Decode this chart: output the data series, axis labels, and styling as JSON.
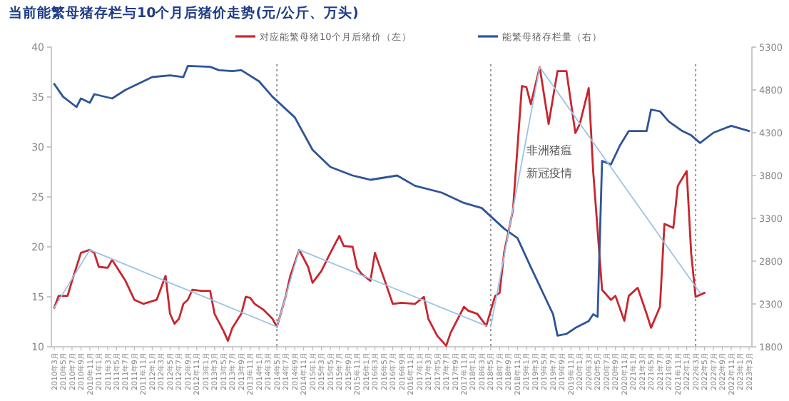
{
  "chart_data": {
    "type": "line",
    "title": "当前能繁母猪存栏与10个月后猪价走势(元/公斤、万头)",
    "series": [
      {
        "name": "对应能繁母猪10个月后猪价（左）",
        "color": "#c8262e",
        "x": [
          "2010-03",
          "2010-04",
          "2010-06",
          "2010-07",
          "2010-09",
          "2010-11",
          "2010-12",
          "2011-01",
          "2011-03",
          "2011-04",
          "2011-07",
          "2011-09",
          "2011-11",
          "2012-02",
          "2012-04",
          "2012-05",
          "2012-06",
          "2012-07",
          "2012-08",
          "2012-09",
          "2012-10",
          "2012-12",
          "2013-02",
          "2013-03",
          "2013-05",
          "2013-06",
          "2013-07",
          "2013-09",
          "2013-10",
          "2013-11",
          "2013-12",
          "2014-02",
          "2014-04",
          "2014-05",
          "2014-07",
          "2014-08",
          "2014-10",
          "2014-12",
          "2015-01",
          "2015-03",
          "2015-05",
          "2015-07",
          "2015-08",
          "2015-10",
          "2015-11",
          "2015-12",
          "2016-02",
          "2016-03",
          "2016-05",
          "2016-07",
          "2016-09",
          "2016-12",
          "2017-02",
          "2017-03",
          "2017-05",
          "2017-07",
          "2017-08",
          "2017-11",
          "2017-12",
          "2018-02",
          "2018-04",
          "2018-06",
          "2018-07",
          "2018-08",
          "2018-10",
          "2018-12",
          "2019-01",
          "2019-02",
          "2019-04",
          "2019-06",
          "2019-08",
          "2019-10",
          "2019-12",
          "2020-01",
          "2020-03",
          "2020-04",
          "2020-06",
          "2020-08",
          "2020-09",
          "2020-11",
          "2020-12",
          "2021-02",
          "2021-04",
          "2021-05",
          "2021-07",
          "2021-08",
          "2021-10",
          "2021-11",
          "2022-01",
          "2022-02",
          "2022-03",
          "2022-05"
        ],
        "values": [
          13.9,
          15.1,
          15.1,
          16.6,
          19.4,
          19.7,
          19.4,
          18,
          17.9,
          18.7,
          16.6,
          14.7,
          14.3,
          14.7,
          17.1,
          13.3,
          12.3,
          12.8,
          14.3,
          14.7,
          15.7,
          15.6,
          15.6,
          13.3,
          11.6,
          10.6,
          11.9,
          13.3,
          15,
          14.9,
          14.3,
          13.7,
          12.8,
          12,
          15.1,
          17.1,
          19.7,
          18,
          16.4,
          17.6,
          19.4,
          21.1,
          20.1,
          20,
          17.9,
          17.3,
          16.6,
          19.4,
          16.9,
          14.3,
          14.4,
          14.3,
          15,
          12.8,
          11.1,
          10.1,
          11.4,
          14,
          13.6,
          13.3,
          12.1,
          15.1,
          15.4,
          19.4,
          23.7,
          36.1,
          36,
          34.3,
          38,
          32.3,
          37.6,
          37.6,
          31.4,
          32.3,
          35.9,
          27.6,
          15.7,
          14.7,
          15.1,
          12.6,
          15.1,
          15.9,
          13.3,
          11.9,
          14,
          22.3,
          21.9,
          26.1,
          27.6,
          19.4,
          15,
          15.4
        ]
      },
      {
        "name": "能繁母猪存栏量（右）",
        "color": "#2e5597",
        "axis": "y2",
        "x": [
          "2010-03",
          "2010-05",
          "2010-08",
          "2010-09",
          "2010-11",
          "2010-12",
          "2011-04",
          "2011-07",
          "2012-01",
          "2012-05",
          "2012-08",
          "2012-09",
          "2013-02",
          "2013-04",
          "2013-07",
          "2013-09",
          "2014-01",
          "2014-04",
          "2014-09",
          "2015-01",
          "2015-05",
          "2015-10",
          "2016-02",
          "2016-08",
          "2016-12",
          "2017-06",
          "2017-11",
          "2018-03",
          "2018-08",
          "2018-11",
          "2019-02",
          "2019-05",
          "2019-07",
          "2019-08",
          "2019-10",
          "2019-12",
          "2020-03",
          "2020-04",
          "2020-05",
          "2020-06",
          "2020-08",
          "2020-10",
          "2020-12",
          "2021-04",
          "2021-05",
          "2021-07",
          "2021-09",
          "2021-12",
          "2022-02",
          "2022-04",
          "2022-07",
          "2022-11",
          "2023-03"
        ],
        "values": [
          4870,
          4720,
          4600,
          4700,
          4650,
          4750,
          4700,
          4800,
          4950,
          4970,
          4950,
          5080,
          5070,
          5030,
          5020,
          5030,
          4900,
          4720,
          4480,
          4100,
          3900,
          3800,
          3750,
          3800,
          3680,
          3600,
          3480,
          3420,
          3180,
          3070,
          2730,
          2400,
          2180,
          1930,
          1950,
          2020,
          2100,
          2180,
          2150,
          3970,
          3930,
          4150,
          4320,
          4320,
          4570,
          4550,
          4430,
          4320,
          4270,
          4180,
          4300,
          4380,
          4320
        ]
      },
      {
        "color": "#9dc3e6",
        "x": [
          "2010-03",
          "2010-11",
          "2014-05",
          "2014-10",
          "2018-04"
        ],
        "values": [
          13.9,
          19.7,
          12,
          19.7,
          12.1
        ]
      },
      {
        "color": "#9dc3e6",
        "x": [
          "2018-05",
          "2019-04",
          "2022-04"
        ],
        "values": [
          12,
          38,
          15.4
        ]
      }
    ],
    "annotations": [
      "非洲猪瘟",
      "新冠疫情"
    ],
    "ref_lines": [
      {
        "axis": "x",
        "value": "2014-05",
        "color": "#999999",
        "line_style": "dotted"
      },
      {
        "axis": "x",
        "value": "2018-05",
        "color": "#999999",
        "line_style": "dotted"
      },
      {
        "axis": "x",
        "value": "2022-03",
        "color": "#999999",
        "line_style": "dotted"
      }
    ],
    "xlim": [
      "2010-03",
      "2023-03"
    ],
    "xticks": [
      {
        "value": "2010-03",
        "label": "2010年3月"
      },
      {
        "value": "2010-05",
        "label": "2010年5月"
      },
      {
        "value": "2010-07",
        "label": "2010年7月"
      },
      {
        "value": "2010-09",
        "label": "2010年9月"
      },
      {
        "value": "2010-11",
        "label": "2010年11月"
      },
      {
        "value": "2011-01",
        "label": "2011年1月"
      },
      {
        "value": "2011-03",
        "label": "2011年3月"
      },
      {
        "value": "2011-05",
        "label": "2011年5月"
      },
      {
        "value": "2011-07",
        "label": "2011年7月"
      },
      {
        "value": "2011-09",
        "label": "2011年9月"
      },
      {
        "value": "2011-11",
        "label": "2011年11月"
      },
      {
        "value": "2012-01",
        "label": "2012年1月"
      },
      {
        "value": "2012-03",
        "label": "2012年3月"
      },
      {
        "value": "2012-05",
        "label": "2012年5月"
      },
      {
        "value": "2012-07",
        "label": "2012年7月"
      },
      {
        "value": "2012-09",
        "label": "2012年9月"
      },
      {
        "value": "2012-11",
        "label": "2012年11月"
      },
      {
        "value": "2013-01",
        "label": "2013年1月"
      },
      {
        "value": "2013-03",
        "label": "2013年3月"
      },
      {
        "value": "2013-05",
        "label": "2013年5月"
      },
      {
        "value": "2013-07",
        "label": "2013年7月"
      },
      {
        "value": "2013-09",
        "label": "2013年9月"
      },
      {
        "value": "2013-11",
        "label": "2013年11月"
      },
      {
        "value": "2014-01",
        "label": "2014年1月"
      },
      {
        "value": "2014-03",
        "label": "2014年3月"
      },
      {
        "value": "2014-05",
        "label": "2014年5月"
      },
      {
        "value": "2014-07",
        "label": "2014年7月"
      },
      {
        "value": "2014-09",
        "label": "2014年9月"
      },
      {
        "value": "2014-11",
        "label": "2014年11月"
      },
      {
        "value": "2015-01",
        "label": "2015年1月"
      },
      {
        "value": "2015-03",
        "label": "2015年3月"
      },
      {
        "value": "2015-05",
        "label": "2015年5月"
      },
      {
        "value": "2015-07",
        "label": "2015年7月"
      },
      {
        "value": "2015-09",
        "label": "2015年9月"
      },
      {
        "value": "2015-11",
        "label": "2015年11月"
      },
      {
        "value": "2016-01",
        "label": "2016年1月"
      },
      {
        "value": "2016-03",
        "label": "2016年3月"
      },
      {
        "value": "2016-05",
        "label": "2016年5月"
      },
      {
        "value": "2016-07",
        "label": "2016年7月"
      },
      {
        "value": "2016-09",
        "label": "2016年9月"
      },
      {
        "value": "2016-11",
        "label": "2016年11月"
      },
      {
        "value": "2017-01",
        "label": "2017年1月"
      },
      {
        "value": "2017-03",
        "label": "2017年3月"
      },
      {
        "value": "2017-05",
        "label": "2017年5月"
      },
      {
        "value": "2017-07",
        "label": "2017年7月"
      },
      {
        "value": "2017-09",
        "label": "2017年9月"
      },
      {
        "value": "2017-11",
        "label": "2017年11月"
      },
      {
        "value": "2018-01",
        "label": "2018年1月"
      },
      {
        "value": "2018-03",
        "label": "2018年3月"
      },
      {
        "value": "2018-05",
        "label": "2018年5月"
      },
      {
        "value": "2018-07",
        "label": "2018年7月"
      },
      {
        "value": "2018-09",
        "label": "2018年9月"
      },
      {
        "value": "2018-11",
        "label": "2018年11月"
      },
      {
        "value": "2019-01",
        "label": "2019年1月"
      },
      {
        "value": "2019-03",
        "label": "2019年3月"
      },
      {
        "value": "2019-05",
        "label": "2019年5月"
      },
      {
        "value": "2019-07",
        "label": "2019年7月"
      },
      {
        "value": "2019-09",
        "label": "2019年9月"
      },
      {
        "value": "2019-11",
        "label": "2019年11月"
      },
      {
        "value": "2020-01",
        "label": "2020年1月"
      },
      {
        "value": "2020-03",
        "label": "2020年3月"
      },
      {
        "value": "2020-05",
        "label": "2020年5月"
      },
      {
        "value": "2020-07",
        "label": "2020年7月"
      },
      {
        "value": "2020-09",
        "label": "2020年9月"
      },
      {
        "value": "2020-11",
        "label": "2020年11月"
      },
      {
        "value": "2021-01",
        "label": "2021年1月"
      },
      {
        "value": "2021-03",
        "label": "2021年3月"
      },
      {
        "value": "2021-05",
        "label": "2021年5月"
      },
      {
        "value": "2021-07",
        "label": "2021年7月"
      },
      {
        "value": "2021-09",
        "label": "2021年9月"
      },
      {
        "value": "2021-11",
        "label": "2021年11月"
      },
      {
        "value": "2022-01",
        "label": "2022年1月"
      },
      {
        "value": "2022-03",
        "label": "2022年3月"
      },
      {
        "value": "2022-05",
        "label": "2022年5月"
      },
      {
        "value": "2022-07",
        "label": "2022年7月"
      },
      {
        "value": "2022-09",
        "label": "2022年9月"
      },
      {
        "value": "2022-11",
        "label": "2022年11月"
      },
      {
        "value": "2023-01",
        "label": "2023年1月"
      },
      {
        "value": "2023-03",
        "label": "2023年3月"
      }
    ],
    "ylim": [
      10,
      40
    ],
    "yticks": [
      10,
      15,
      20,
      25,
      30,
      35,
      40
    ],
    "y2lim": [
      1800,
      5300
    ],
    "y2ticks": [
      1800,
      2300,
      2800,
      3300,
      3800,
      4300,
      4800,
      5300
    ],
    "legend": "top",
    "grid": false,
    "marker": "none",
    "line_style": "solid"
  }
}
